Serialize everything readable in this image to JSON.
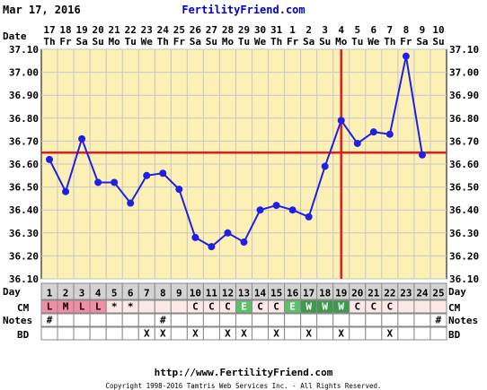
{
  "header": {
    "date": "Mar 17, 2016",
    "site": "FertilityFriend.com"
  },
  "footer": {
    "url": "http://www.FertilityFriend.com",
    "copyright": "Copyright 1998-2016 Tamtris Web Services Inc. - All Rights Reserved."
  },
  "row_labels": {
    "date": "Date",
    "day": "Day",
    "cm": "CM",
    "notes": "Notes",
    "bd": "BD"
  },
  "colors": {
    "background": "#fcf0b4",
    "grid": "#c6c6c6",
    "line": "#1f1fe6",
    "coverline": "#e41c1c",
    "header_text": "#0000cc",
    "day_cell": "#d3d3d3",
    "cm_cell": "#fce8e8",
    "cm_L": "#f48ca8",
    "cm_E": "#5fbf6a",
    "cm_W": "#3d9a4d"
  },
  "chart_data": {
    "type": "line",
    "ylim": [
      36.1,
      37.1
    ],
    "yticks": [
      "36.10",
      "36.20",
      "36.30",
      "36.40",
      "36.50",
      "36.60",
      "36.70",
      "36.80",
      "36.90",
      "37.00",
      "37.10"
    ],
    "coverline": 36.65,
    "ovulation_day": 19,
    "dates": [
      "17",
      "18",
      "19",
      "20",
      "21",
      "22",
      "23",
      "24",
      "25",
      "26",
      "27",
      "28",
      "29",
      "30",
      "31",
      "1",
      "2",
      "3",
      "4",
      "5",
      "6",
      "7",
      "8",
      "9",
      "10"
    ],
    "weekdays": [
      "Th",
      "Fr",
      "Sa",
      "Su",
      "Mo",
      "Tu",
      "We",
      "Th",
      "Fr",
      "Sa",
      "Su",
      "Mo",
      "Tu",
      "We",
      "Th",
      "Fr",
      "Sa",
      "Su",
      "Mo",
      "Tu",
      "We",
      "Th",
      "Fr",
      "Sa",
      "Su"
    ],
    "days": [
      "1",
      "2",
      "3",
      "4",
      "5",
      "6",
      "7",
      "8",
      "9",
      "10",
      "11",
      "12",
      "13",
      "14",
      "15",
      "16",
      "17",
      "18",
      "19",
      "20",
      "21",
      "22",
      "23",
      "24",
      "25"
    ],
    "temps": [
      36.62,
      36.48,
      36.71,
      36.52,
      36.52,
      36.43,
      36.55,
      36.56,
      36.49,
      36.28,
      36.24,
      36.3,
      36.26,
      36.4,
      36.42,
      36.4,
      36.37,
      36.59,
      36.79,
      36.69,
      36.74,
      36.73,
      37.07,
      36.64
    ],
    "cm": [
      "L",
      "M",
      "L",
      "L",
      "*",
      "*",
      "",
      "",
      "",
      "C",
      "C",
      "C",
      "E",
      "C",
      "C",
      "E",
      "W",
      "W",
      "W",
      "C",
      "C",
      "C",
      "",
      "",
      ""
    ],
    "notes": [
      "#",
      "",
      "",
      "",
      "",
      "",
      "",
      "#",
      "",
      "",
      "",
      "",
      "",
      "",
      "",
      "",
      "",
      "",
      "",
      "",
      "",
      "",
      "",
      "",
      "#"
    ],
    "bd": [
      "",
      "",
      "",
      "",
      "",
      "",
      "X",
      "X",
      "",
      "X",
      "",
      "X",
      "X",
      "",
      "X",
      "",
      "X",
      "",
      "X",
      "",
      "",
      "X",
      "",
      "",
      ""
    ]
  }
}
